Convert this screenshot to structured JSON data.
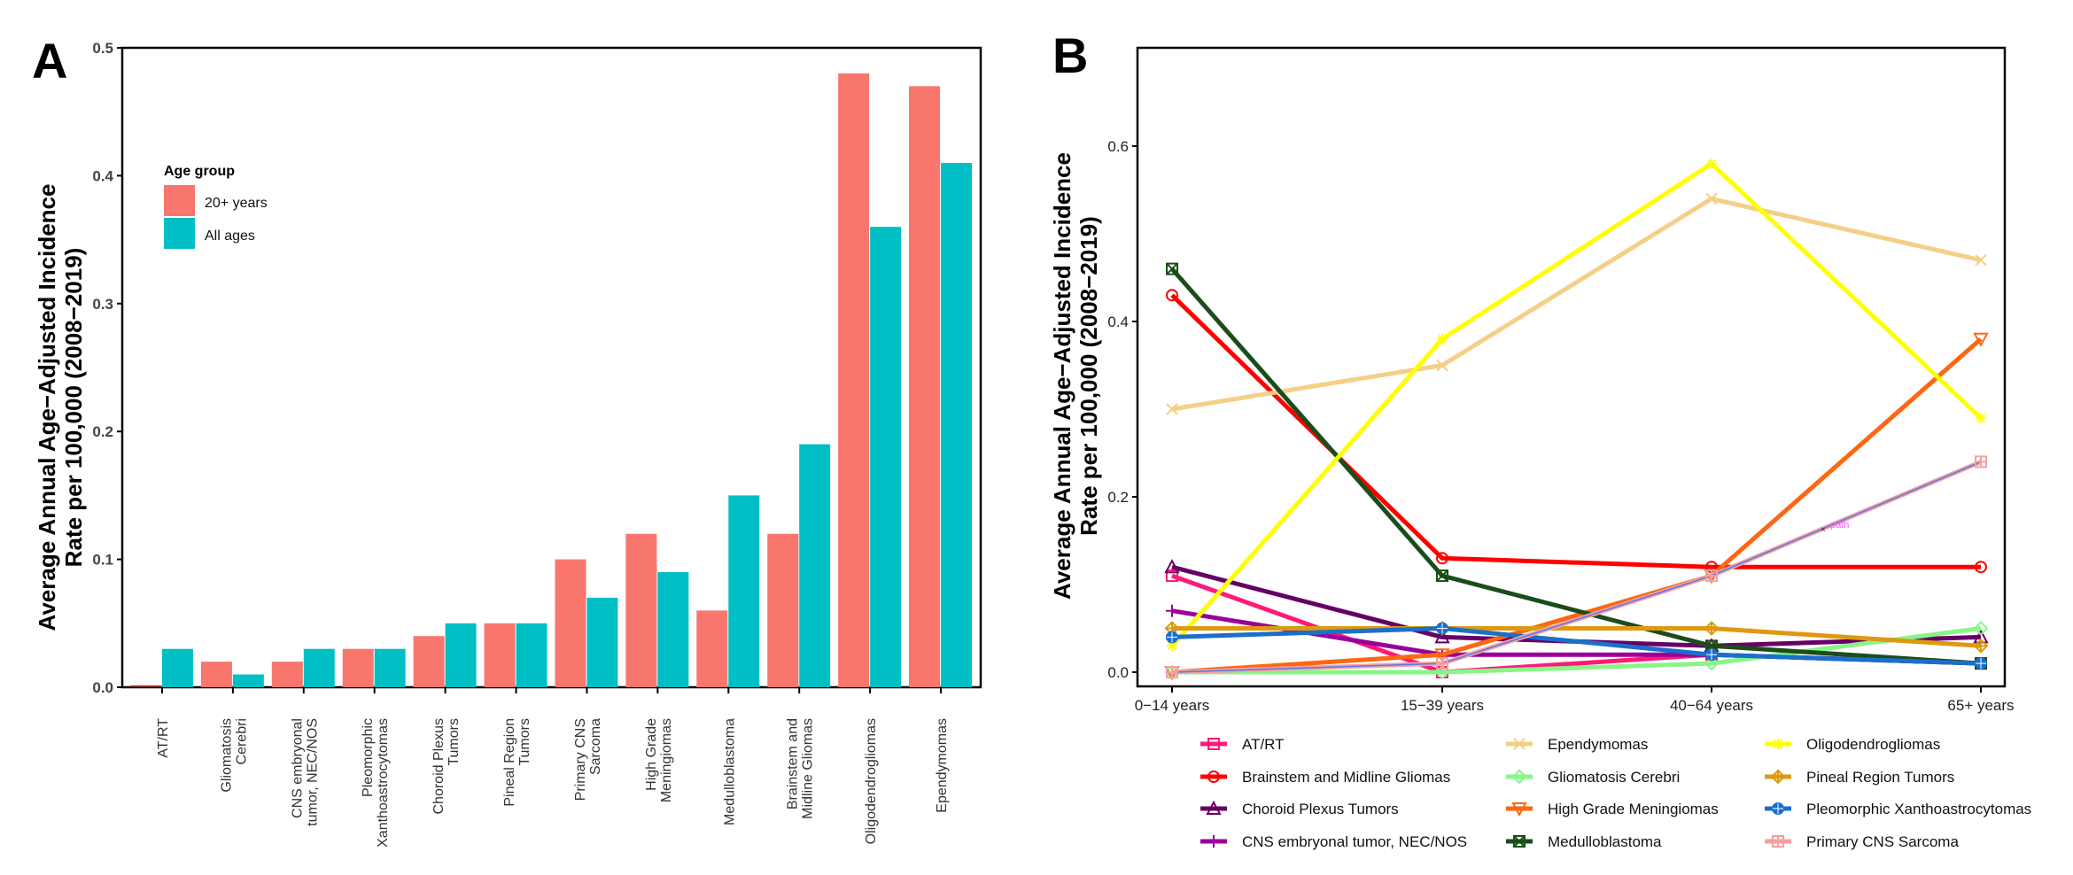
{
  "chart_data": [
    {
      "panel": "A",
      "type": "bar",
      "title": "",
      "xlabel": "",
      "ylabel": [
        "Average Annual Age−Adjusted Incidence",
        "Rate per 100,000 (2008−2019)"
      ],
      "ylim": [
        0,
        0.5
      ],
      "yticks": [
        "0.0",
        "0.1",
        "0.2",
        "0.3",
        "0.4",
        "0.5"
      ],
      "grid": false,
      "legend": {
        "title": "Age group",
        "placement": "top-left"
      },
      "categories": [
        [
          "AT/RT"
        ],
        [
          "Gliomatosis",
          "Cerebri"
        ],
        [
          "CNS embryonal",
          "tumor, NEC/NOS"
        ],
        [
          "Pleomorphic",
          "Xanthoastrocytomas"
        ],
        [
          "Choroid Plexus",
          "Tumors"
        ],
        [
          "Pineal Region",
          "Tumors"
        ],
        [
          "Primary CNS",
          "Sarcoma"
        ],
        [
          "High Grade",
          "Meningiomas"
        ],
        [
          "Medulloblastoma"
        ],
        [
          "Brainstem and",
          "Midline Gliomas"
        ],
        [
          "Oligodendrogliomas"
        ],
        [
          "Ependymomas"
        ]
      ],
      "series": [
        {
          "name": "20+ years",
          "color": "#F8766D",
          "values": [
            0.0,
            0.02,
            0.02,
            0.03,
            0.04,
            0.05,
            0.1,
            0.12,
            0.06,
            0.12,
            0.48,
            0.47
          ]
        },
        {
          "name": "All ages",
          "color": "#00BFC4",
          "values": [
            0.03,
            0.01,
            0.03,
            0.03,
            0.05,
            0.05,
            0.07,
            0.09,
            0.15,
            0.19,
            0.36,
            0.41
          ]
        }
      ]
    },
    {
      "panel": "B",
      "type": "line",
      "title": "",
      "xlabel": "",
      "ylabel": [
        "Average Annual Age−Adjusted Incidence",
        "Rate per 100,000 (2008−2019)"
      ],
      "ylim": [
        -0.02,
        0.72
      ],
      "yticks": [
        "0.0",
        "0.2",
        "0.4",
        "0.6"
      ],
      "x": [
        "0−14 years",
        "15−39 years",
        "40−64 years",
        "65+ years"
      ],
      "grid": false,
      "legend": {
        "placement": "bottom",
        "columns": 3
      },
      "annotation": "path",
      "series": [
        {
          "name": "AT/RT",
          "color": "#FF1A75",
          "marker": "square",
          "values": [
            0.11,
            0.0,
            0.02,
            0.01
          ]
        },
        {
          "name": "Brainstem and Midline Gliomas",
          "color": "#FF0000",
          "marker": "circle",
          "values": [
            0.43,
            0.13,
            0.12,
            0.12
          ]
        },
        {
          "name": "Choroid Plexus Tumors",
          "color": "#660066",
          "marker": "triangle",
          "values": [
            0.12,
            0.04,
            0.03,
            0.04
          ]
        },
        {
          "name": "CNS embryonal tumor, NEC/NOS",
          "color": "#990099",
          "marker": "plus",
          "values": [
            0.07,
            0.02,
            0.02,
            0.01
          ]
        },
        {
          "name": "Ependymomas",
          "color": "#F5CF87",
          "marker": "cross",
          "values": [
            0.3,
            0.35,
            0.54,
            0.47
          ]
        },
        {
          "name": "Gliomatosis Cerebri",
          "color": "#88F588",
          "marker": "diamond",
          "values": [
            0.0,
            0.0,
            0.01,
            0.05
          ]
        },
        {
          "name": "High Grade Meningiomas",
          "color": "#FF6611",
          "marker": "triangle-down",
          "values": [
            0.0,
            0.02,
            0.11,
            0.38
          ]
        },
        {
          "name": "Medulloblastoma",
          "color": "#1A4D1A",
          "marker": "square-cross",
          "values": [
            0.46,
            0.11,
            0.03,
            0.01
          ]
        },
        {
          "name": "Oligodendrogliomas",
          "color": "#FFFF00",
          "marker": "asterisk",
          "values": [
            0.03,
            0.38,
            0.58,
            0.29
          ]
        },
        {
          "name": "Pineal Region Tumors",
          "color": "#DD9911",
          "marker": "diamond-plus",
          "values": [
            0.05,
            0.05,
            0.05,
            0.03
          ]
        },
        {
          "name": "Pleomorphic Xanthoastrocytomas",
          "color": "#1A6FCC",
          "marker": "circle-plus",
          "values": [
            0.04,
            0.05,
            0.02,
            0.01
          ]
        },
        {
          "name": "Primary CNS Sarcoma",
          "color": "#F5A0A0",
          "marker": "square-plus",
          "values": [
            0.0,
            0.01,
            0.11,
            0.24
          ]
        }
      ]
    }
  ],
  "panels": {
    "a_letter": "A",
    "b_letter": "B"
  }
}
